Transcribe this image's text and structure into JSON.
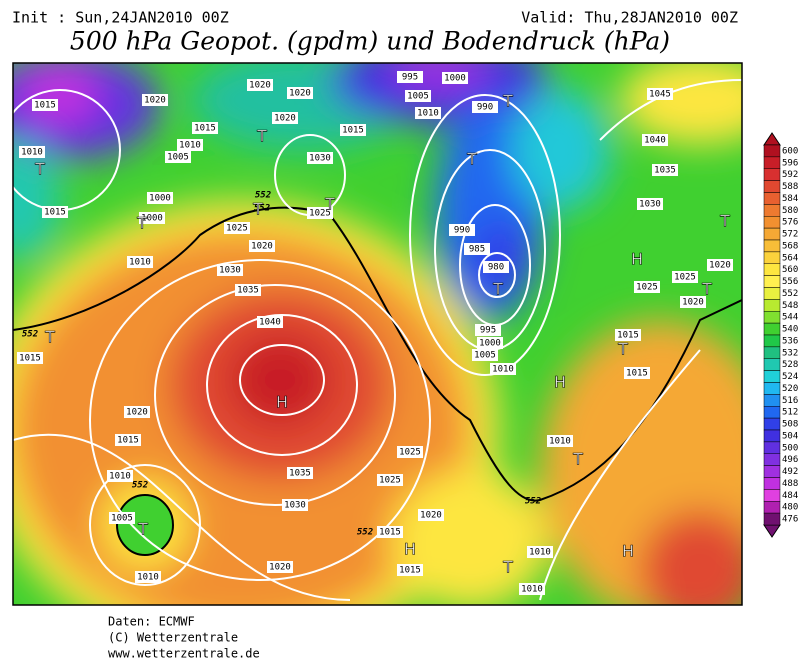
{
  "header": {
    "init": "Init : Sun,24JAN2010 00Z",
    "valid": "Valid: Thu,28JAN2010 00Z",
    "title": "500 hPa Geopot. (gpdm) und Bodendruck (hPa)"
  },
  "colorbar": {
    "levels": [
      600,
      596,
      592,
      588,
      584,
      580,
      576,
      572,
      568,
      564,
      560,
      556,
      552,
      548,
      544,
      540,
      536,
      532,
      528,
      524,
      520,
      516,
      512,
      508,
      504,
      500,
      496,
      492,
      488,
      484,
      480,
      476
    ],
    "colors": [
      "#b01020",
      "#c81e28",
      "#d83030",
      "#e04830",
      "#e86030",
      "#ee7a30",
      "#f29030",
      "#f5a835",
      "#f8be38",
      "#fbd23c",
      "#fde640",
      "#fff050",
      "#e8f040",
      "#b8ea30",
      "#80e030",
      "#40d030",
      "#20c848",
      "#20c080",
      "#20c8b0",
      "#20d0d8",
      "#20b8f0",
      "#2090f0",
      "#2068f0",
      "#3040e8",
      "#4030e0",
      "#6030e0",
      "#8030e0",
      "#a030e0",
      "#c030e0",
      "#e040e0",
      "#b020b0",
      "#701070"
    ]
  },
  "pressure_labels": [
    1015,
    1020,
    1015,
    1010,
    1005,
    1000,
    1000,
    1010,
    1015,
    1010,
    1020,
    1020,
    1020,
    1030,
    1015,
    1025,
    1020,
    1030,
    1035,
    1040,
    1015,
    1020,
    1035,
    1030,
    995,
    1000,
    1005,
    1010,
    990,
    990,
    985,
    980,
    995,
    1000,
    1005,
    1010,
    1015,
    1010,
    1005,
    1010,
    1020,
    1025,
    1020,
    1015,
    1015,
    1010,
    1010,
    1010,
    1045,
    1040,
    1035,
    1030,
    1025,
    1025,
    1020,
    1020,
    1015,
    1015,
    1025,
    1025
  ],
  "contour_labels": [
    "552",
    "552",
    "552",
    "552",
    "552",
    "552"
  ],
  "centers": [
    "T",
    "T",
    "T",
    "T",
    "T",
    "T",
    "T",
    "T",
    "T",
    "T",
    "T",
    "T",
    "T",
    "T",
    "T",
    "H",
    "H",
    "H",
    "H",
    "H"
  ],
  "footer": [
    "Daten: ECMWF",
    "(C) Wetterzentrale",
    "www.wetterzentrale.de"
  ]
}
